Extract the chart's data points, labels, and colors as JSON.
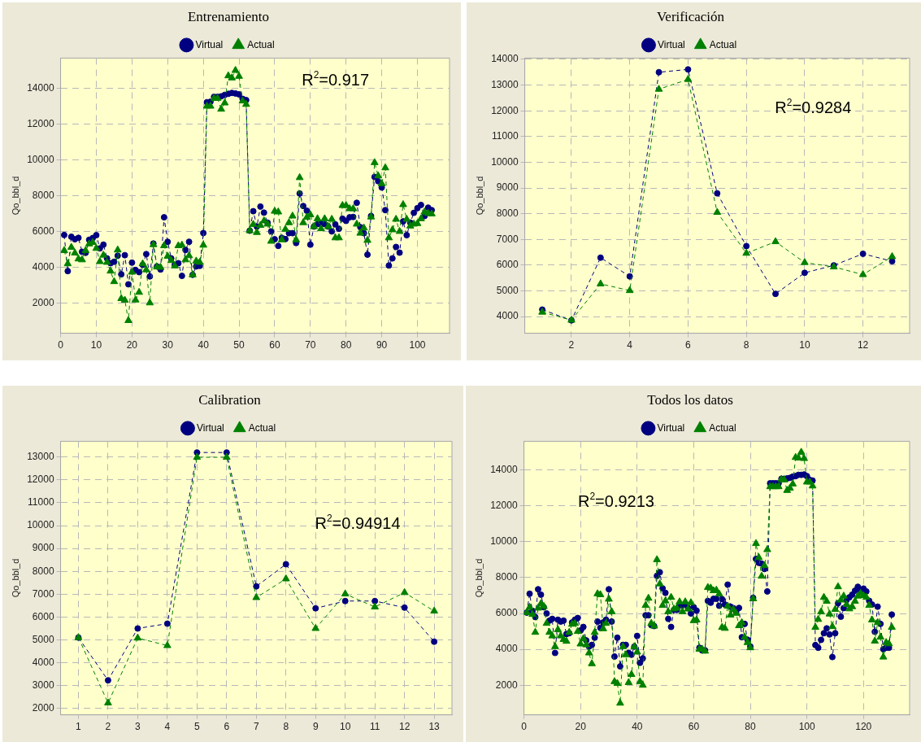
{
  "chart_data": [
    {
      "type": "line",
      "title": "Entrenamiento",
      "ylabel": "Qo_bbl_d",
      "annotations": [
        "R$^{2}$=0.917"
      ],
      "legend": "top",
      "grid": true,
      "line_style": "dashed",
      "xlim": [
        0,
        109
      ],
      "xticks": [
        0,
        10,
        20,
        30,
        40,
        50,
        60,
        70,
        80,
        90,
        100
      ],
      "ylim": [
        300,
        15700
      ],
      "yticks": [
        2000,
        4000,
        6000,
        8000,
        10000,
        12000,
        14000
      ],
      "x": [
        1,
        2,
        3,
        4,
        5,
        6,
        7,
        8,
        9,
        10,
        11,
        12,
        13,
        14,
        15,
        16,
        17,
        18,
        19,
        20,
        21,
        22,
        23,
        24,
        25,
        26,
        27,
        28,
        29,
        30,
        31,
        32,
        33,
        34,
        35,
        36,
        37,
        38,
        39,
        40,
        41,
        42,
        43,
        44,
        45,
        46,
        47,
        48,
        49,
        50,
        51,
        52,
        53,
        54,
        55,
        56,
        57,
        58,
        59,
        60,
        61,
        62,
        63,
        64,
        65,
        66,
        67,
        68,
        69,
        70,
        71,
        72,
        73,
        74,
        75,
        76,
        77,
        78,
        79,
        80,
        81,
        82,
        83,
        84,
        85,
        86,
        87,
        88,
        89,
        90,
        91,
        92,
        93,
        94,
        95,
        96,
        97,
        98,
        99,
        100,
        101,
        102,
        103,
        104
      ],
      "series": [
        {
          "name": "Virtual",
          "color": "#000080",
          "marker": "circle",
          "values": [
            5800,
            3780,
            5700,
            5560,
            5640,
            4860,
            4800,
            5530,
            5630,
            5790,
            5050,
            5260,
            4490,
            4220,
            4300,
            4640,
            3600,
            4670,
            3040,
            4250,
            3840,
            3720,
            4130,
            4730,
            3480,
            5320,
            4040,
            3870,
            6790,
            5420,
            4490,
            4130,
            4220,
            3510,
            4960,
            5420,
            3570,
            4040,
            4070,
            5910,
            13230,
            13260,
            13530,
            13530,
            13560,
            13640,
            13700,
            13750,
            13720,
            13670,
            13420,
            13350,
            6040,
            7130,
            6270,
            7390,
            7050,
            6490,
            6000,
            5560,
            5190,
            5640,
            5570,
            5900,
            5900,
            5350,
            8120,
            7420,
            7160,
            5260,
            6270,
            6410,
            6440,
            6410,
            6270,
            6000,
            6390,
            6150,
            6710,
            6590,
            6790,
            6810,
            7600,
            6240,
            5900,
            4700,
            6860,
            9050,
            8810,
            8460,
            7190,
            4090,
            4490,
            5130,
            4810,
            6560,
            5790,
            6490,
            7040,
            7300,
            7480,
            6860,
            7330,
            7190
          ]
        },
        {
          "name": "Actual",
          "color": "#008000",
          "marker": "triangle",
          "values": [
            4930,
            4190,
            5110,
            4790,
            4460,
            4410,
            4930,
            5300,
            5380,
            5050,
            4310,
            4670,
            4270,
            3780,
            3190,
            4960,
            2240,
            2150,
            1010,
            3720,
            2160,
            2590,
            4190,
            3850,
            2000,
            5260,
            4010,
            3990,
            5200,
            4610,
            4370,
            4070,
            5200,
            5230,
            4410,
            4640,
            3570,
            4340,
            4270,
            5230,
            13010,
            13010,
            13450,
            13450,
            12840,
            13190,
            14710,
            14590,
            15010,
            14680,
            13300,
            13110,
            6040,
            6390,
            5940,
            6340,
            6590,
            6410,
            5450,
            7130,
            7090,
            5530,
            6120,
            6490,
            6860,
            5530,
            9010,
            6490,
            6790,
            6930,
            6270,
            6710,
            6150,
            6710,
            6270,
            6680,
            5640,
            5640,
            7450,
            7450,
            7270,
            7270,
            6410,
            5900,
            6190,
            5500,
            6810,
            9850,
            9110,
            8670,
            9560,
            5640,
            6090,
            6680,
            6000,
            7500,
            6680,
            6300,
            6410,
            6440,
            6710,
            7090,
            7010,
            6980
          ]
        }
      ]
    },
    {
      "type": "line",
      "title": "Verificación",
      "ylabel": "Qo_bbl_d",
      "annotations": [
        "R$^{2}$=0.9284"
      ],
      "legend": "top",
      "grid": true,
      "line_style": "dashed",
      "xlim": [
        0.4,
        13.6
      ],
      "xticks": [
        2,
        4,
        6,
        8,
        10,
        12
      ],
      "ylim": [
        3350,
        14050
      ],
      "yticks": [
        4000,
        5000,
        6000,
        7000,
        8000,
        9000,
        10000,
        11000,
        12000,
        13000,
        14000
      ],
      "x": [
        1,
        2,
        3,
        4,
        5,
        6,
        7,
        8,
        9,
        10,
        11,
        12,
        13
      ],
      "series": [
        {
          "name": "Virtual",
          "color": "#000080",
          "marker": "circle",
          "values": [
            4270,
            3850,
            6290,
            5560,
            13500,
            13610,
            8790,
            6740,
            4880,
            5700,
            5990,
            6440,
            6150
          ]
        },
        {
          "name": "Actual",
          "color": "#008000",
          "marker": "triangle",
          "values": [
            4170,
            3860,
            5270,
            5010,
            12840,
            13220,
            8050,
            6460,
            6910,
            6100,
            5930,
            5630,
            6330
          ]
        }
      ]
    },
    {
      "type": "line",
      "title": "Calibration",
      "ylabel": "Qo_bbl_d",
      "annotations": [
        "R$^{2}$=0.94914"
      ],
      "legend": "top",
      "grid": true,
      "line_style": "dashed",
      "xlim": [
        0.4,
        13.6
      ],
      "xticks": [
        1,
        2,
        3,
        4,
        5,
        6,
        7,
        8,
        9,
        10,
        11,
        12,
        13
      ],
      "ylim": [
        1720,
        13690
      ],
      "yticks": [
        2000,
        3000,
        4000,
        5000,
        6000,
        7000,
        8000,
        9000,
        10000,
        11000,
        12000,
        13000
      ],
      "x": [
        1,
        2,
        3,
        4,
        5,
        6,
        7,
        8,
        9,
        10,
        11,
        12,
        13
      ],
      "series": [
        {
          "name": "Virtual",
          "color": "#000080",
          "marker": "circle",
          "values": [
            5100,
            3230,
            5500,
            5710,
            13200,
            13200,
            7340,
            8310,
            6380,
            6700,
            6700,
            6410,
            4920
          ]
        },
        {
          "name": "Actual",
          "color": "#008000",
          "marker": "triangle",
          "values": [
            5100,
            2240,
            5080,
            4750,
            12990,
            12990,
            6850,
            7670,
            5500,
            7010,
            6440,
            7070,
            6260
          ]
        }
      ]
    },
    {
      "type": "line",
      "title": "Todos los datos",
      "ylabel": "Qo_bbl_d",
      "annotations": [
        "R$^{2}$=0.9213"
      ],
      "legend": "top",
      "grid": true,
      "line_style": "dashed",
      "xlim": [
        0,
        136.3
      ],
      "xticks": [
        0,
        20,
        40,
        60,
        80,
        100,
        120
      ],
      "ylim": [
        350,
        15600
      ],
      "yticks": [
        2000,
        4000,
        6000,
        8000,
        10000,
        12000,
        14000
      ],
      "x": [
        1,
        2,
        3,
        4,
        5,
        6,
        7,
        8,
        9,
        10,
        11,
        12,
        13,
        14,
        15,
        16,
        17,
        18,
        19,
        20,
        21,
        22,
        23,
        24,
        25,
        26,
        27,
        28,
        29,
        30,
        31,
        32,
        33,
        34,
        35,
        36,
        37,
        38,
        39,
        40,
        41,
        42,
        43,
        44,
        45,
        46,
        47,
        48,
        49,
        50,
        51,
        52,
        53,
        54,
        55,
        56,
        57,
        58,
        59,
        60,
        61,
        62,
        63,
        64,
        65,
        66,
        67,
        68,
        69,
        70,
        71,
        72,
        73,
        74,
        75,
        76,
        77,
        78,
        79,
        80,
        81,
        82,
        83,
        84,
        85,
        86,
        87,
        88,
        89,
        90,
        91,
        92,
        93,
        94,
        95,
        96,
        97,
        98,
        99,
        100,
        101,
        102,
        103,
        104,
        105,
        106,
        107,
        108,
        109,
        110,
        111,
        112,
        113,
        114,
        115,
        116,
        117,
        118,
        119,
        120,
        121,
        122,
        123,
        124,
        125,
        126,
        127,
        128,
        129,
        130
      ],
      "series": [
        {
          "name": "Virtual",
          "color": "#000080",
          "marker": "circle",
          "values": [
            6050,
            7100,
            6150,
            5800,
            7350,
            7050,
            6350,
            6000,
            5600,
            5700,
            3800,
            5650,
            5550,
            5600,
            4850,
            4900,
            5500,
            5650,
            5750,
            5050,
            5250,
            4500,
            4150,
            4250,
            4650,
            5550,
            5200,
            5500,
            5650,
            7350,
            5550,
            3600,
            4650,
            3050,
            4250,
            4250,
            3800,
            3700,
            4150,
            4750,
            3250,
            3500,
            5900,
            5900,
            5350,
            5300,
            8100,
            8300,
            7400,
            7150,
            5700,
            5250,
            6200,
            6200,
            6450,
            6450,
            6550,
            6300,
            6000,
            6350,
            6160,
            4090,
            3940,
            3950,
            6700,
            6600,
            6820,
            6820,
            6430,
            6800,
            6500,
            7610,
            6380,
            6300,
            6090,
            6310,
            4680,
            5420,
            4540,
            4160,
            6870,
            9040,
            8820,
            8780,
            8480,
            7230,
            13260,
            13260,
            13260,
            13260,
            13510,
            13510,
            13530,
            13560,
            13630,
            13660,
            13730,
            13730,
            13750,
            13660,
            13450,
            13410,
            4240,
            4090,
            4530,
            4900,
            5170,
            4830,
            3570,
            4900,
            6570,
            5820,
            6300,
            6750,
            6900,
            7050,
            7270,
            7490,
            7300,
            7390,
            7230,
            6710,
            6500,
            4980,
            6380,
            5420,
            4010,
            4090,
            4090,
            5940
          ]
        },
        {
          "name": "Actual",
          "color": "#008000",
          "marker": "triangle",
          "values": [
            6050,
            6350,
            5950,
            4950,
            6300,
            6550,
            6400,
            5450,
            4950,
            4750,
            4150,
            5100,
            4750,
            4550,
            4450,
            4950,
            5400,
            5450,
            5000,
            4300,
            4600,
            4250,
            3800,
            3200,
            4950,
            7100,
            7050,
            5150,
            5450,
            6800,
            6100,
            2200,
            2100,
            1000,
            4150,
            3700,
            2150,
            2600,
            4150,
            3850,
            2200,
            2000,
            6450,
            6850,
            5450,
            5300,
            9000,
            7650,
            6450,
            6700,
            6100,
            6900,
            6250,
            6300,
            6650,
            6100,
            6650,
            6250,
            6600,
            5600,
            5640,
            4010,
            4010,
            3900,
            7450,
            7420,
            7270,
            7300,
            7090,
            5230,
            5170,
            6410,
            5910,
            6230,
            6010,
            5320,
            5490,
            4680,
            4380,
            4090,
            6820,
            9900,
            9120,
            8080,
            8670,
            9560,
            13070,
            13070,
            13070,
            13070,
            13480,
            13450,
            12860,
            12990,
            13220,
            14700,
            14670,
            14990,
            14640,
            13330,
            13330,
            13110,
            5230,
            5670,
            6090,
            6900,
            6680,
            5970,
            5270,
            6230,
            7490,
            6750,
            6970,
            6500,
            6260,
            6380,
            6680,
            6970,
            7120,
            7000,
            6900,
            6450,
            5640,
            4460,
            5490,
            4680,
            3570,
            4380,
            4310,
            5230
          ]
        }
      ]
    }
  ]
}
